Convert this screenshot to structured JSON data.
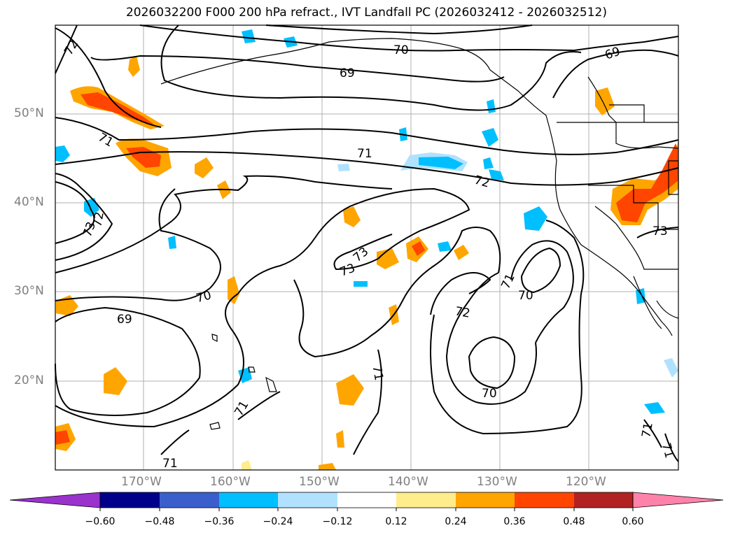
{
  "title": "2026032200 F000 200 hPa refract., IVT Landfall PC (2026032412 - 2026032512)",
  "map": {
    "lat_labels": [
      "50°N",
      "40°N",
      "30°N",
      "20°N"
    ],
    "lon_labels": [
      "170°W",
      "160°W",
      "150°W",
      "140°W",
      "130°W",
      "120°W"
    ],
    "contour_labels": [
      "72",
      "71",
      "70",
      "69",
      "71",
      "72",
      "73",
      "72",
      "73",
      "73",
      "70",
      "69",
      "71",
      "70",
      "72",
      "71",
      "70",
      "71",
      "71",
      "73",
      "71",
      "71",
      "69"
    ],
    "contour_color": "#000000",
    "coastline_color": "#000000",
    "grid_color": "#b0b0b0"
  },
  "colorbar": {
    "ticks": [
      "−0.60",
      "−0.48",
      "−0.36",
      "−0.24",
      "−0.12",
      "0.12",
      "0.24",
      "0.36",
      "0.48",
      "0.60"
    ],
    "colors": [
      "#9a32cd",
      "#00008b",
      "#3a5fcd",
      "#00bfff",
      "#b0e2ff",
      "#ffffff",
      "#ffec8b",
      "#ffa500",
      "#ff4500",
      "#b22222",
      "#ff82ab"
    ]
  }
}
